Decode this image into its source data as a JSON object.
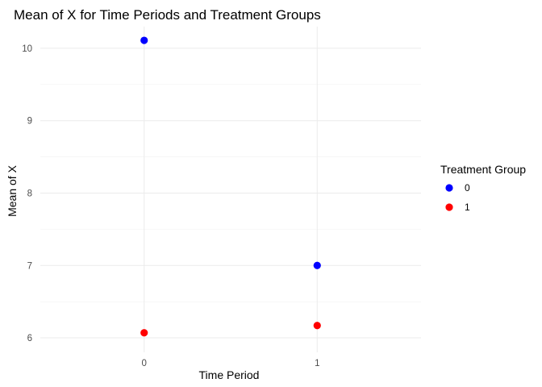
{
  "chart_data": {
    "type": "scatter",
    "title": "Mean of X for Time Periods and Treatment Groups",
    "xlabel": "Time Period",
    "ylabel": "Mean of X",
    "categories": [
      "0",
      "1"
    ],
    "ylim": [
      5.8,
      10.3
    ],
    "yticks": [
      6,
      7,
      8,
      9,
      10
    ],
    "grid": true,
    "legend": {
      "title": "Treatment Group",
      "placement": "right"
    },
    "series": [
      {
        "name": "0",
        "color": "#0000ff",
        "values": [
          10.11,
          7.0
        ]
      },
      {
        "name": "1",
        "color": "#ff0000",
        "values": [
          6.07,
          6.17
        ]
      }
    ]
  }
}
